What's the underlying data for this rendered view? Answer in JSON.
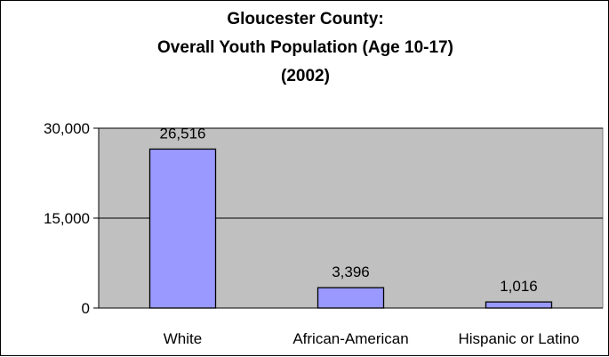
{
  "chart_data": {
    "type": "bar",
    "title_lines": [
      "Gloucester County:",
      "Overall Youth Population (Age 10-17)",
      "(2002)"
    ],
    "categories": [
      "White",
      "African-American",
      "Hispanic or Latino"
    ],
    "values": [
      26516,
      3396,
      1016
    ],
    "data_labels": [
      "26,516",
      "3,396",
      "1,016"
    ],
    "ylim": [
      0,
      30000
    ],
    "yticks": [
      0,
      15000,
      30000
    ],
    "ytick_labels": [
      "0",
      "15,000",
      "30,000"
    ],
    "xlabel": "",
    "ylabel": "",
    "grid": "horizontal major gridlines",
    "legend": "none",
    "colors": {
      "plot_area": "#c0c0c0",
      "bar_fill": "#9999ff",
      "bar_stroke": "#000000",
      "gridline": "#000000"
    }
  }
}
